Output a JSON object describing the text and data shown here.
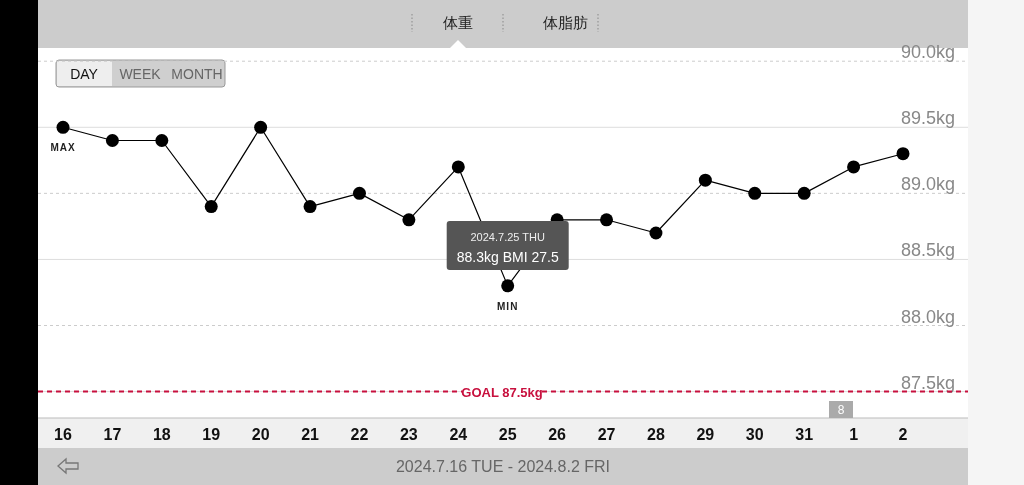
{
  "chart_data": {
    "type": "line",
    "title": "体重",
    "subtitle": "2024.7.16 TUE - 2024.8.2 FRI",
    "categories": [
      "16",
      "17",
      "18",
      "19",
      "20",
      "21",
      "22",
      "23",
      "24",
      "25",
      "26",
      "27",
      "28",
      "29",
      "30",
      "31",
      "1",
      "2"
    ],
    "series": [
      {
        "color": "#000000",
        "values": [
          89.5,
          89.4,
          89.4,
          88.9,
          89.5,
          88.9,
          89.0,
          88.8,
          89.2,
          88.3,
          88.8,
          88.8,
          88.7,
          89.1,
          89.0,
          89.0,
          89.2,
          89.3
        ]
      }
    ],
    "ylim": [
      87.3,
      90.1
    ],
    "yticks": [
      {
        "value": 87.5,
        "label": "87.5kg"
      },
      {
        "value": 88.0,
        "label": "88.0kg"
      },
      {
        "value": 88.5,
        "label": "88.5kg"
      },
      {
        "value": 89.0,
        "label": "89.0kg"
      },
      {
        "value": 89.5,
        "label": "89.5kg"
      },
      {
        "value": 90.0,
        "label": "90.0kg"
      }
    ],
    "grid": "y",
    "marker": "circle",
    "ref_lines": [
      {
        "axis": "y",
        "value": 87.5,
        "label": "GOAL 87.5kg",
        "color": "#c8103e",
        "line_style": "dashed"
      }
    ],
    "annotations": [
      "体脂肪",
      "DAY",
      "WEEK",
      "MONTH",
      "8",
      {
        "text": "MAX",
        "x": "16",
        "y": 89.5
      },
      {
        "text": "MIN",
        "x": "25",
        "y": 88.3
      },
      "2024.7.25 THU",
      "88.3kg  BMI 27.5"
    ]
  }
}
